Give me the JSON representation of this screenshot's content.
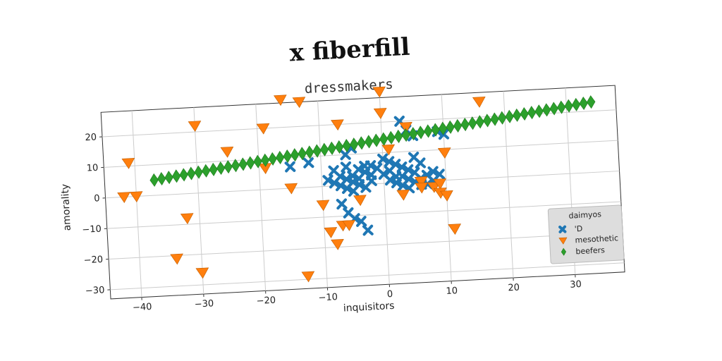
{
  "page_title": "x fiberfill",
  "chart_data": {
    "type": "scatter",
    "title": "dressmakers",
    "xlabel": "inquisitors",
    "ylabel": "amorality",
    "xlim": [
      -45,
      38
    ],
    "ylim": [
      -33,
      28
    ],
    "xticks": [
      -40,
      -30,
      -20,
      -10,
      0,
      10,
      20,
      30
    ],
    "yticks": [
      -30,
      -20,
      -10,
      0,
      10,
      20
    ],
    "grid": true,
    "legend": {
      "title": "daimyos",
      "placement": "lower-right"
    },
    "series": [
      {
        "name": "'D",
        "marker": "x",
        "color": "#1f77b4",
        "points": [
          [
            -15,
            7
          ],
          [
            -12,
            8
          ],
          [
            -8,
            5
          ],
          [
            -6,
            6
          ],
          [
            -5,
            3
          ],
          [
            -4,
            2
          ],
          [
            -3,
            4
          ],
          [
            -2,
            1
          ],
          [
            -9,
            2
          ],
          [
            -7,
            0
          ],
          [
            -6,
            -1
          ],
          [
            -5,
            1
          ],
          [
            -4,
            0
          ],
          [
            -3,
            -1
          ],
          [
            -2,
            3
          ],
          [
            -1,
            5
          ],
          [
            -8,
            1
          ],
          [
            -7,
            3
          ],
          [
            -6,
            2
          ],
          [
            -5,
            -2
          ],
          [
            -4,
            5
          ],
          [
            -3,
            6
          ],
          [
            -2,
            6
          ],
          [
            -7,
            -6
          ],
          [
            -6,
            -9
          ],
          [
            -5,
            -11
          ],
          [
            -4,
            -12
          ],
          [
            -3,
            -15
          ],
          [
            -6,
            10
          ],
          [
            -5,
            12
          ],
          [
            0,
            8
          ],
          [
            1,
            7
          ],
          [
            1,
            4
          ],
          [
            2,
            2
          ],
          [
            2,
            0
          ],
          [
            3,
            -1
          ],
          [
            3,
            2
          ],
          [
            4,
            1
          ],
          [
            4,
            -2
          ],
          [
            5,
            0
          ],
          [
            5,
            3
          ],
          [
            6,
            1
          ],
          [
            6,
            -1
          ],
          [
            7,
            2
          ],
          [
            7,
            -1
          ],
          [
            8,
            0
          ],
          [
            8,
            3
          ],
          [
            9,
            2
          ],
          [
            2,
            6
          ],
          [
            3,
            5
          ],
          [
            4,
            4
          ],
          [
            5,
            8
          ],
          [
            6,
            6
          ],
          [
            3,
            20
          ],
          [
            4,
            17
          ],
          [
            5,
            15
          ],
          [
            9,
            16
          ],
          [
            10,
            15
          ],
          [
            1,
            1
          ],
          [
            0,
            3
          ]
        ]
      },
      {
        "name": "mesothetic",
        "marker": "triangle-down",
        "color": "#ff7f0e",
        "points": [
          [
            -41,
            11
          ],
          [
            -42,
            0
          ],
          [
            -40,
            0
          ],
          [
            -32,
            -8
          ],
          [
            -34,
            -21
          ],
          [
            -30,
            -26
          ],
          [
            -30,
            22
          ],
          [
            -25,
            13
          ],
          [
            -19,
            20
          ],
          [
            -19,
            7
          ],
          [
            -15,
            0
          ],
          [
            -16,
            29
          ],
          [
            -13,
            28
          ],
          [
            -13,
            -29
          ],
          [
            -10,
            -6
          ],
          [
            -9,
            -15
          ],
          [
            -8,
            -19
          ],
          [
            -7,
            -13
          ],
          [
            -6,
            -13
          ],
          [
            -7,
            20
          ],
          [
            -4,
            -5
          ],
          [
            0,
            30
          ],
          [
            0,
            23
          ],
          [
            1,
            11
          ],
          [
            3,
            -4
          ],
          [
            4,
            18
          ],
          [
            6,
            0
          ],
          [
            6,
            -2
          ],
          [
            8,
            -2
          ],
          [
            9,
            -1
          ],
          [
            9,
            -4
          ],
          [
            10,
            -5
          ],
          [
            10,
            9
          ],
          [
            11,
            -16
          ],
          [
            16,
            25
          ]
        ]
      },
      {
        "name": "beefers",
        "marker": "diamond",
        "color": "#2ca02c",
        "line_from": [
          -37,
          5
        ],
        "line_to": [
          34,
          23
        ],
        "count": 60
      }
    ]
  }
}
